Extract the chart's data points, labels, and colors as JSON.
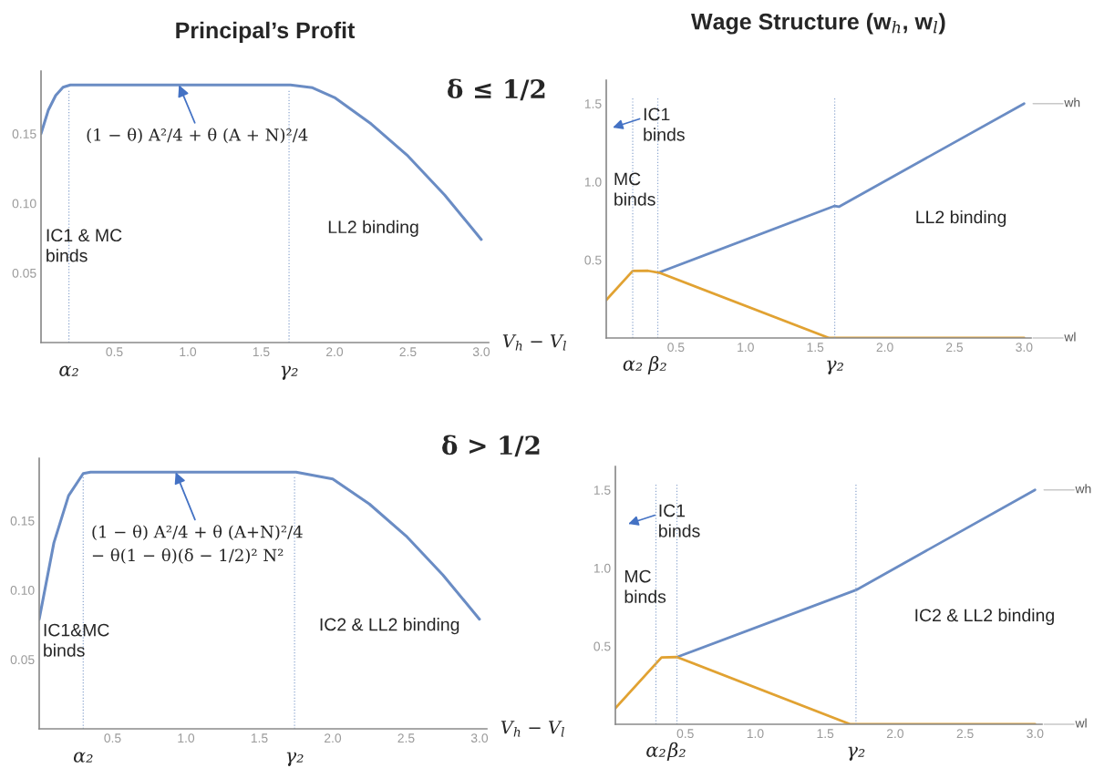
{
  "chart_data": [
    {
      "type": "line",
      "title": "Principal’s Profit",
      "xlabel": "V$_{h}$ − V$_{l}$",
      "color": "#6a8cc4",
      "marker": "none",
      "line_style": "solid",
      "legend": false,
      "x": [
        0,
        0.05,
        0.1,
        0.15,
        0.2,
        0.5,
        1.0,
        1.5,
        1.7,
        1.85,
        2.0,
        2.25,
        2.5,
        2.75,
        3.0
      ],
      "values": [
        0.15,
        0.167,
        0.1775,
        0.1834,
        0.185,
        0.185,
        0.185,
        0.185,
        0.185,
        0.183,
        0.176,
        0.157,
        0.134,
        0.106,
        0.074
      ],
      "xlim": [
        0,
        3.05
      ],
      "ylim": [
        0,
        0.195
      ],
      "xticks": [
        {
          "value": 0.5,
          "label": "0.5"
        },
        {
          "value": 1.0,
          "label": "1.0"
        },
        {
          "value": 1.5,
          "label": "1.5"
        },
        {
          "value": 2.0,
          "label": "2.0"
        },
        {
          "value": 2.5,
          "label": "2.5"
        },
        {
          "value": 3.0,
          "label": "3.0"
        }
      ],
      "yticks": [
        {
          "value": 0.05,
          "label": "0.05"
        },
        {
          "value": 0.1,
          "label": "0.10"
        },
        {
          "value": 0.15,
          "label": "0.15"
        }
      ],
      "ref_lines": [
        {
          "axis": "x",
          "value": 0.19,
          "label": "α₂",
          "color": "#8fa8d0",
          "line_style": "dotted"
        },
        {
          "axis": "x",
          "value": 1.69,
          "label": "γ₂",
          "color": "#8fa8d0",
          "line_style": "dotted"
        }
      ],
      "annotations": [
        {
          "text": "(1 − θ) A²/4 + θ (A + N)²/4",
          "x": 0.94,
          "y": 0.185
        },
        "IC1 & MC\nbinds",
        "LL2 binding",
        "δ ≤ 1/2"
      ]
    },
    {
      "type": "line",
      "title": "Wage Structure (w$_{h}$, w$_{l}$)",
      "marker": "none",
      "line_style": "solid",
      "legend": false,
      "series": [
        {
          "name": "wh",
          "color": "#6a8cc4",
          "x": [
            0.38,
            1.64,
            1.67,
            3.0
          ],
          "values": [
            0.42,
            0.845,
            0.84,
            1.5
          ]
        },
        {
          "name": "wl",
          "color": "#e1a232",
          "x": [
            0,
            0.19,
            0.3,
            0.38,
            1.6,
            3.0
          ],
          "values": [
            0.243,
            0.429,
            0.43,
            0.418,
            0,
            0
          ]
        }
      ],
      "xlim": [
        0,
        3.05
      ],
      "ylim": [
        0,
        1.65
      ],
      "xticks": [
        {
          "value": 0.5,
          "label": "0.5"
        },
        {
          "value": 1.0,
          "label": "1.0"
        },
        {
          "value": 1.5,
          "label": "1.5"
        },
        {
          "value": 2.0,
          "label": "2.0"
        },
        {
          "value": 2.5,
          "label": "2.5"
        },
        {
          "value": 3.0,
          "label": "3.0"
        }
      ],
      "yticks": [
        {
          "value": 0.5,
          "label": "0.5"
        },
        {
          "value": 1.0,
          "label": "1.0"
        },
        {
          "value": 1.5,
          "label": "1.5"
        }
      ],
      "ref_lines": [
        {
          "axis": "x",
          "value": 0.19,
          "label": "α₂",
          "color": "#8fa8d0",
          "line_style": "dotted"
        },
        {
          "axis": "x",
          "value": 0.37,
          "label": "β₂",
          "color": "#8fa8d0",
          "line_style": "dotted"
        },
        {
          "axis": "x",
          "value": 1.64,
          "label": "γ₂",
          "color": "#8fa8d0",
          "line_style": "dotted"
        }
      ],
      "annotations": [
        "IC1\nbinds",
        "MC\nbinds",
        "LL2 binding"
      ]
    },
    {
      "type": "line",
      "xlabel": "V$_{h}$ − V$_{l}$",
      "color": "#6a8cc4",
      "marker": "none",
      "line_style": "solid",
      "legend": false,
      "x": [
        0,
        0.1,
        0.2,
        0.3,
        0.35,
        0.5,
        1.0,
        1.5,
        1.75,
        2.0,
        2.25,
        2.5,
        2.75,
        3.0
      ],
      "values": [
        0.079,
        0.134,
        0.168,
        0.184,
        0.185,
        0.185,
        0.185,
        0.185,
        0.185,
        0.18,
        0.162,
        0.139,
        0.111,
        0.079
      ],
      "xlim": [
        0,
        3.05
      ],
      "ylim": [
        0,
        0.195
      ],
      "xticks": [
        {
          "value": 0.5,
          "label": "0.5"
        },
        {
          "value": 1.0,
          "label": "1.0"
        },
        {
          "value": 1.5,
          "label": "1.5"
        },
        {
          "value": 2.0,
          "label": "2.0"
        },
        {
          "value": 2.5,
          "label": "2.5"
        },
        {
          "value": 3.0,
          "label": "3.0"
        }
      ],
      "yticks": [
        {
          "value": 0.05,
          "label": "0.05"
        },
        {
          "value": 0.1,
          "label": "0.10"
        },
        {
          "value": 0.15,
          "label": "0.15"
        }
      ],
      "ref_lines": [
        {
          "axis": "x",
          "value": 0.3,
          "label": "α₂",
          "color": "#8fa8d0",
          "line_style": "dotted"
        },
        {
          "axis": "x",
          "value": 1.74,
          "label": "γ₂",
          "color": "#8fa8d0",
          "line_style": "dotted"
        }
      ],
      "annotations": [
        {
          "text": "(1 − θ) A²/4 + θ (A+N)²/4\n− θ(1 − θ)(δ − 1/2)² N²",
          "x": 0.93,
          "y": 0.185
        },
        "IC1&MC\nbinds",
        "IC2 & LL2 binding",
        "δ > 1/2"
      ]
    },
    {
      "type": "line",
      "marker": "none",
      "line_style": "solid",
      "legend": false,
      "series": [
        {
          "name": "wh",
          "color": "#6a8cc4",
          "x": [
            0.44,
            1.72,
            3.0
          ],
          "values": [
            0.43,
            0.859,
            1.5
          ]
        },
        {
          "name": "wl",
          "color": "#e1a232",
          "x": [
            0,
            0.33,
            0.44,
            1.68,
            3.0
          ],
          "values": [
            0.103,
            0.428,
            0.43,
            0,
            0
          ]
        }
      ],
      "xlim": [
        0,
        3.05
      ],
      "ylim": [
        0,
        1.65
      ],
      "xticks": [
        {
          "value": 0.5,
          "label": "0.5"
        },
        {
          "value": 1.0,
          "label": "1.0"
        },
        {
          "value": 1.5,
          "label": "1.5"
        },
        {
          "value": 2.0,
          "label": "2.0"
        },
        {
          "value": 2.5,
          "label": "2.5"
        },
        {
          "value": 3.0,
          "label": "3.0"
        }
      ],
      "yticks": [
        {
          "value": 0.5,
          "label": "0.5"
        },
        {
          "value": 1.0,
          "label": "1.0"
        },
        {
          "value": 1.5,
          "label": "1.5"
        }
      ],
      "ref_lines": [
        {
          "axis": "x",
          "value": 0.29,
          "label": "α₂",
          "color": "#8fa8d0",
          "line_style": "dotted"
        },
        {
          "axis": "x",
          "value": 0.44,
          "label": "β₂",
          "color": "#8fa8d0",
          "line_style": "dotted"
        },
        {
          "axis": "x",
          "value": 1.72,
          "label": "γ₂",
          "color": "#8fa8d0",
          "line_style": "dotted"
        }
      ],
      "annotations": [
        "IC1\nbinds",
        "MC\nbinds",
        "IC2 & LL2 binding"
      ]
    }
  ]
}
